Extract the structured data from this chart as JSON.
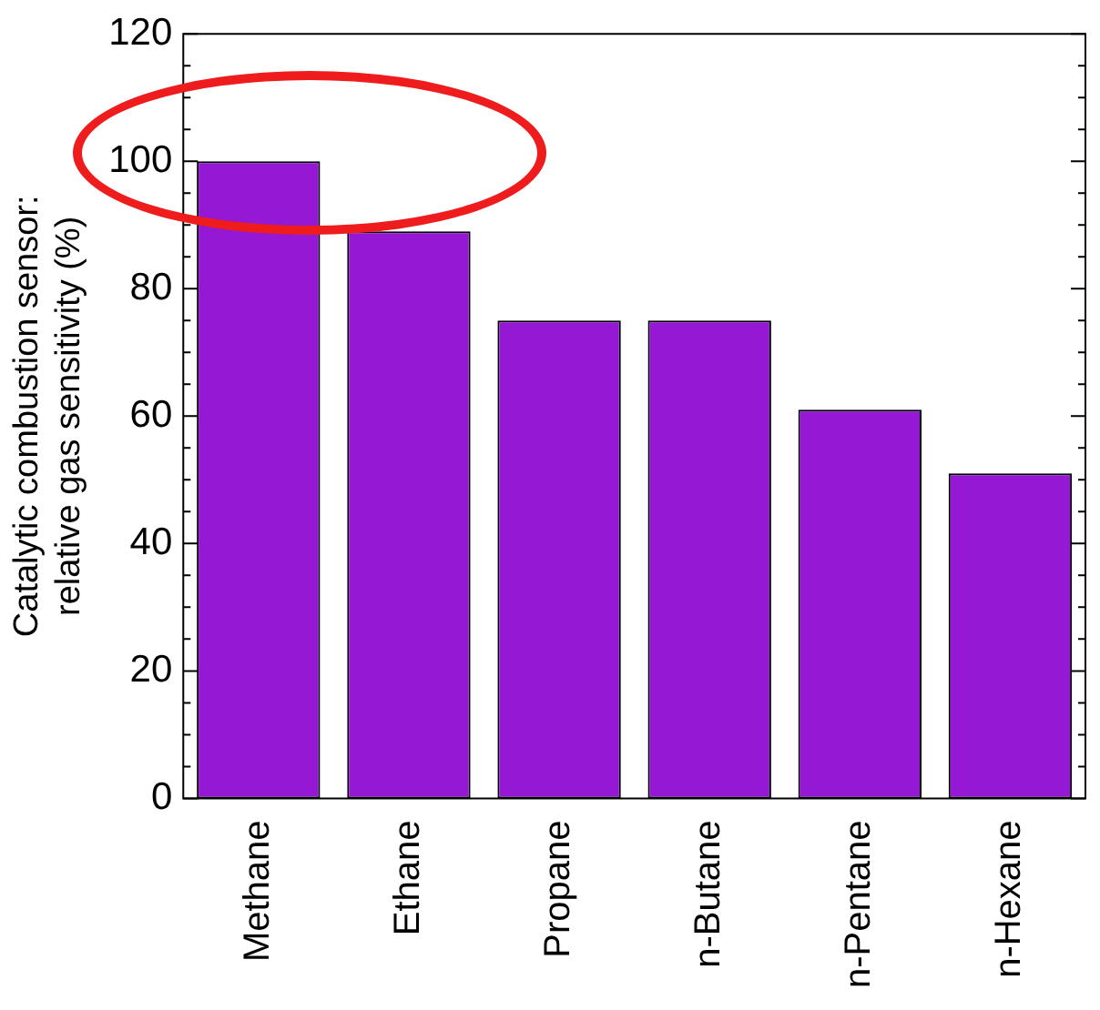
{
  "chart_data": {
    "type": "bar",
    "ylabel": "Catalytic combustion sensor:\nrelative gas sensitivity (%)",
    "categories": [
      "Methane",
      "Ethane",
      "Propane",
      "n-Butane",
      "n-Pentane",
      "n-Hexane"
    ],
    "values": [
      100,
      89,
      75,
      75,
      61,
      51
    ],
    "color": "#9418d4",
    "ylim": [
      0,
      120
    ],
    "yticks": [
      0,
      {
        "value": 5,
        "label": null
      },
      {
        "value": 10,
        "label": null
      },
      {
        "value": 15,
        "label": null
      },
      20,
      {
        "value": 25,
        "label": null
      },
      {
        "value": 30,
        "label": null
      },
      {
        "value": 35,
        "label": null
      },
      40,
      {
        "value": 45,
        "label": null
      },
      {
        "value": 50,
        "label": null
      },
      {
        "value": 55,
        "label": null
      },
      60,
      {
        "value": 65,
        "label": null
      },
      {
        "value": 70,
        "label": null
      },
      {
        "value": 75,
        "label": null
      },
      80,
      {
        "value": 85,
        "label": null
      },
      {
        "value": 90,
        "label": null
      },
      {
        "value": 95,
        "label": null
      },
      100,
      {
        "value": 105,
        "label": null
      },
      {
        "value": 110,
        "label": null
      },
      {
        "value": 115,
        "label": null
      },
      120
    ],
    "grid": false,
    "legend": false
  }
}
